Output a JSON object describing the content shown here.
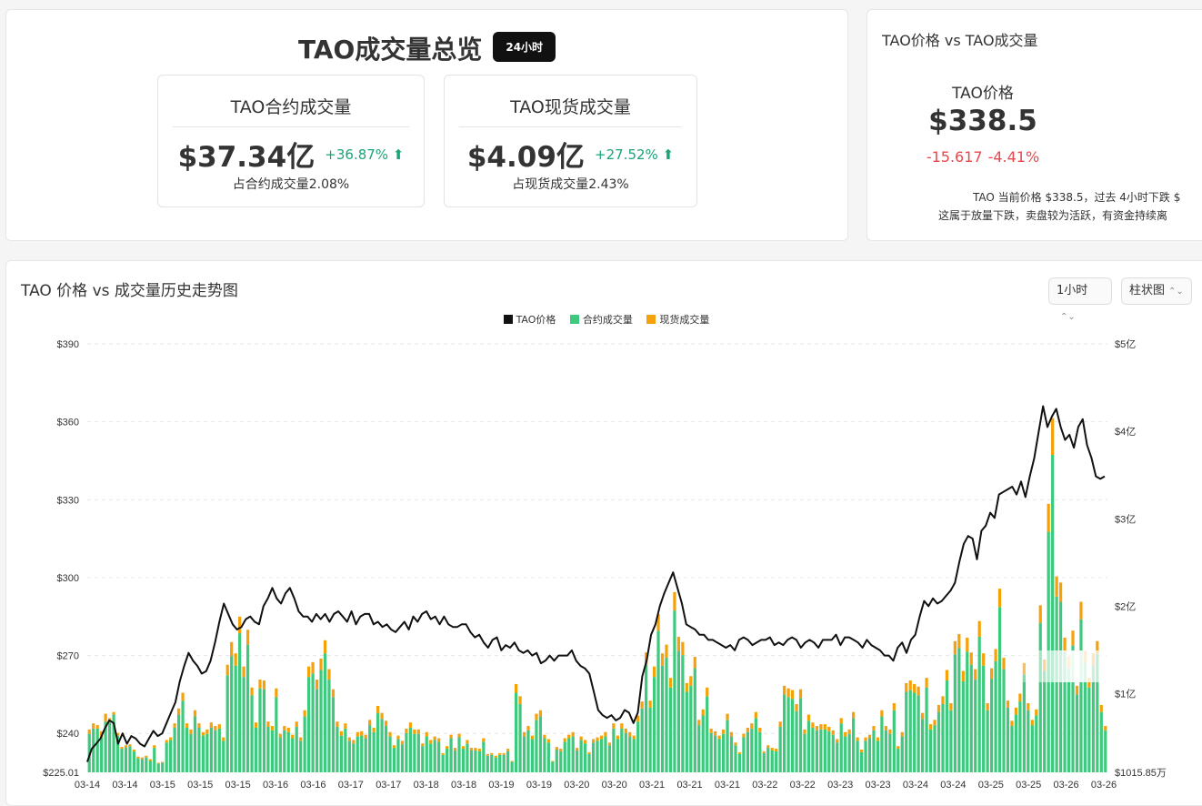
{
  "overview": {
    "title": "TAO成交量总览",
    "period_badge": "24小时",
    "contract": {
      "title": "TAO合约成交量",
      "amount": "$37.34亿",
      "change": "+36.87%",
      "share": "占合约成交量2.08%"
    },
    "spot": {
      "title": "TAO现货成交量",
      "amount": "$4.09亿",
      "change": "+27.52%",
      "share": "占现货成交量2.43%"
    },
    "up_arrow": "⬆"
  },
  "price_card": {
    "title": "TAO价格 vs TAO成交量",
    "label": "TAO价格",
    "price": "$338.5",
    "change_abs": "-15.617",
    "change_pct": "-4.41%",
    "desc_line1": "TAO 当前价格 $338.5，过去 4小时下跌 $",
    "desc_line2": "这属于放量下跌，卖盘较为活跃，有资金持续离"
  },
  "history": {
    "title": "TAO 价格 vs 成交量历史走势图",
    "interval_select": "1小时",
    "type_select": "柱状图",
    "select_arrow": "⌃⌄"
  },
  "colors": {
    "price": "#111111",
    "contract": "#3ec97e",
    "spot": "#f5a10a",
    "up": "#1aa37a",
    "down": "#e5484d"
  },
  "chart_data": {
    "type": "bar",
    "legend": [
      "TAO价格",
      "合约成交量",
      "现货成交量"
    ],
    "left_axis": {
      "ticks": [
        "$390",
        "$360",
        "$330",
        "$300",
        "$270",
        "$240",
        "$225.01"
      ],
      "min": 225.01,
      "max": 390
    },
    "right_axis": {
      "ticks": [
        "$5亿",
        "$4亿",
        "$3亿",
        "$2亿",
        "$1亿",
        "$1015.85万"
      ],
      "min": 0.1016,
      "max": 5
    },
    "x_ticks": [
      "03-14",
      "03-14",
      "03-15",
      "03-15",
      "03-15",
      "03-16",
      "03-16",
      "03-17",
      "03-17",
      "03-18",
      "03-18",
      "03-19",
      "03-19",
      "03-20",
      "03-20",
      "03-21",
      "03-21",
      "03-21",
      "03-22",
      "03-22",
      "03-23",
      "03-23",
      "03-24",
      "03-24",
      "03-25",
      "03-25",
      "03-26",
      "03-26"
    ],
    "price_series": [
      229,
      234,
      236,
      238,
      242,
      245,
      244,
      236,
      240,
      236,
      239,
      238,
      236,
      235,
      238,
      241,
      239,
      240,
      244,
      248,
      252,
      260,
      266,
      271,
      268,
      266,
      263,
      264,
      268,
      275,
      283,
      290,
      286,
      282,
      280,
      281,
      284,
      285,
      283,
      282,
      289,
      292,
      296,
      292,
      290,
      294,
      296,
      292,
      287,
      285,
      285,
      283,
      286,
      284,
      286,
      283,
      286,
      287,
      285,
      283,
      287,
      282,
      285,
      286,
      286,
      282,
      283,
      281,
      282,
      280,
      279,
      281,
      283,
      280,
      285,
      283,
      286,
      287,
      284,
      285,
      282,
      285,
      282,
      281,
      281,
      282,
      282,
      279,
      277,
      278,
      275,
      273,
      276,
      277,
      272,
      274,
      273,
      275,
      272,
      271,
      272,
      270,
      271,
      267,
      268,
      270,
      268,
      270,
      270,
      270,
      272,
      268,
      266,
      265,
      263,
      256,
      249,
      247,
      246,
      247,
      245,
      246,
      249,
      248,
      244,
      248,
      262,
      268,
      278,
      282,
      289,
      294,
      298,
      302,
      296,
      290,
      282,
      281,
      280,
      278,
      278,
      276,
      276,
      275,
      274,
      273,
      274,
      272,
      276,
      277,
      276,
      274,
      275,
      276,
      276,
      277,
      274,
      275,
      274,
      276,
      277,
      276,
      273,
      275,
      276,
      275,
      273,
      276,
      276,
      276,
      278,
      274,
      277,
      277,
      276,
      275,
      273,
      276,
      274,
      273,
      272,
      270,
      270,
      268,
      273,
      275,
      271,
      276,
      278,
      285,
      291,
      289,
      292,
      290,
      291,
      293,
      295,
      298,
      306,
      313,
      316,
      315,
      307,
      318,
      320,
      325,
      323,
      332,
      333,
      334,
      335,
      332,
      337,
      331,
      339,
      346,
      356,
      366,
      358,
      362,
      365,
      358,
      353,
      355,
      350,
      358,
      361,
      351,
      346,
      339,
      338,
      339
    ],
    "contract_series": [
      0.44,
      0.5,
      0.5,
      0.4,
      0.58,
      0.57,
      0.66,
      0.42,
      0.27,
      0.28,
      0.3,
      0.24,
      0.16,
      0.15,
      0.17,
      0.13,
      0.28,
      0.1,
      0.11,
      0.34,
      0.37,
      0.51,
      0.66,
      0.82,
      0.51,
      0.44,
      0.64,
      0.51,
      0.42,
      0.44,
      0.51,
      0.48,
      0.5,
      0.36,
      1.11,
      1.33,
      1.22,
      1.59,
      1.09,
      1.46,
      0.88,
      0.51,
      0.96,
      0.95,
      0.52,
      0.48,
      0.86,
      0.4,
      0.48,
      0.46,
      0.39,
      0.52,
      0.36,
      0.64,
      1.09,
      1.13,
      0.95,
      1.17,
      1.36,
      1.06,
      0.86,
      0.52,
      0.42,
      0.5,
      0.36,
      0.33,
      0.41,
      0.42,
      0.39,
      0.54,
      0.46,
      0.68,
      0.61,
      0.53,
      0.41,
      0.28,
      0.38,
      0.32,
      0.45,
      0.51,
      0.44,
      0.44,
      0.3,
      0.41,
      0.33,
      0.37,
      0.35,
      0.2,
      0.27,
      0.39,
      0.25,
      0.4,
      0.27,
      0.33,
      0.25,
      0.25,
      0.24,
      0.35,
      0.19,
      0.2,
      0.17,
      0.2,
      0.2,
      0.24,
      0.12,
      0.91,
      0.78,
      0.41,
      0.48,
      0.38,
      0.6,
      0.64,
      0.39,
      0.34,
      0.12,
      0.26,
      0.24,
      0.35,
      0.39,
      0.41,
      0.25,
      0.37,
      0.33,
      0.21,
      0.34,
      0.36,
      0.38,
      0.41,
      0.31,
      0.5,
      0.38,
      0.5,
      0.45,
      0.41,
      0.38,
      0.58,
      0.73,
      1.23,
      0.74,
      1.09,
      1.62,
      1.22,
      1.31,
      0.97,
      1.85,
      1.39,
      1.34,
      0.92,
      0.99,
      1.19,
      0.54,
      0.65,
      0.87,
      0.45,
      0.42,
      0.38,
      0.44,
      0.6,
      0.41,
      0.31,
      0.21,
      0.4,
      0.46,
      0.5,
      0.62,
      0.46,
      0.22,
      0.28,
      0.25,
      0.24,
      0.52,
      0.89,
      0.86,
      0.84,
      0.7,
      0.85,
      0.44,
      0.59,
      0.51,
      0.48,
      0.49,
      0.49,
      0.47,
      0.43,
      0.34,
      0.56,
      0.41,
      0.44,
      0.62,
      0.36,
      0.23,
      0.36,
      0.39,
      0.48,
      0.36,
      0.64,
      0.48,
      0.44,
      0.71,
      0.27,
      0.41,
      0.92,
      0.94,
      0.91,
      0.88,
      0.61,
      0.97,
      0.49,
      0.54,
      0.69,
      0.78,
      1.05,
      0.71,
      1.35,
      1.42,
      1.04,
      1.38,
      1.23,
      1.06,
      1.55,
      1.22,
      0.71,
      1.07,
      1.27,
      1.89,
      1.18,
      0.74,
      0.53,
      0.66,
      0.81,
      1.12,
      0.71,
      0.54,
      0.65,
      1.71,
      1.16,
      2.75,
      3.63,
      2.01,
      1.95,
      1.38,
      1.19,
      1.45,
      0.89,
      1.75,
      1.25,
      0.97,
      1.22,
      1.35,
      0.69,
      0.48
    ],
    "spot_series": [
      0.05,
      0.06,
      0.04,
      0.07,
      0.09,
      0.05,
      0.03,
      0.03,
      0.02,
      0.03,
      0.02,
      0.02,
      0.02,
      0.02,
      0.02,
      0.02,
      0.03,
      0.01,
      0.01,
      0.03,
      0.03,
      0.05,
      0.07,
      0.09,
      0.05,
      0.05,
      0.07,
      0.05,
      0.04,
      0.05,
      0.06,
      0.05,
      0.05,
      0.04,
      0.12,
      0.16,
      0.14,
      0.19,
      0.12,
      0.17,
      0.09,
      0.06,
      0.1,
      0.1,
      0.06,
      0.05,
      0.1,
      0.04,
      0.05,
      0.05,
      0.04,
      0.06,
      0.04,
      0.07,
      0.12,
      0.13,
      0.11,
      0.13,
      0.15,
      0.12,
      0.09,
      0.06,
      0.05,
      0.06,
      0.04,
      0.04,
      0.05,
      0.05,
      0.04,
      0.06,
      0.05,
      0.08,
      0.07,
      0.06,
      0.05,
      0.03,
      0.04,
      0.04,
      0.05,
      0.06,
      0.05,
      0.05,
      0.03,
      0.05,
      0.04,
      0.04,
      0.04,
      0.02,
      0.03,
      0.04,
      0.03,
      0.04,
      0.03,
      0.04,
      0.03,
      0.03,
      0.03,
      0.04,
      0.02,
      0.02,
      0.02,
      0.02,
      0.02,
      0.03,
      0.01,
      0.1,
      0.09,
      0.05,
      0.05,
      0.04,
      0.07,
      0.07,
      0.04,
      0.04,
      0.01,
      0.03,
      0.03,
      0.04,
      0.04,
      0.05,
      0.03,
      0.04,
      0.04,
      0.02,
      0.04,
      0.04,
      0.04,
      0.05,
      0.03,
      0.06,
      0.04,
      0.06,
      0.05,
      0.05,
      0.04,
      0.07,
      0.08,
      0.14,
      0.08,
      0.12,
      0.19,
      0.14,
      0.15,
      0.11,
      0.21,
      0.16,
      0.15,
      0.1,
      0.11,
      0.13,
      0.06,
      0.07,
      0.1,
      0.05,
      0.05,
      0.04,
      0.05,
      0.07,
      0.05,
      0.03,
      0.02,
      0.04,
      0.05,
      0.06,
      0.07,
      0.05,
      0.02,
      0.03,
      0.03,
      0.03,
      0.06,
      0.1,
      0.1,
      0.1,
      0.08,
      0.1,
      0.05,
      0.07,
      0.06,
      0.05,
      0.06,
      0.06,
      0.05,
      0.05,
      0.04,
      0.06,
      0.05,
      0.05,
      0.07,
      0.04,
      0.03,
      0.04,
      0.04,
      0.05,
      0.04,
      0.07,
      0.05,
      0.05,
      0.08,
      0.03,
      0.05,
      0.1,
      0.11,
      0.1,
      0.1,
      0.07,
      0.11,
      0.06,
      0.06,
      0.08,
      0.09,
      0.12,
      0.08,
      0.15,
      0.16,
      0.12,
      0.16,
      0.14,
      0.12,
      0.18,
      0.14,
      0.08,
      0.12,
      0.14,
      0.21,
      0.13,
      0.08,
      0.06,
      0.08,
      0.09,
      0.13,
      0.08,
      0.06,
      0.07,
      0.2,
      0.13,
      0.32,
      0.42,
      0.23,
      0.22,
      0.16,
      0.14,
      0.17,
      0.1,
      0.2,
      0.14,
      0.11,
      0.14,
      0.15,
      0.08,
      0.05
    ]
  }
}
